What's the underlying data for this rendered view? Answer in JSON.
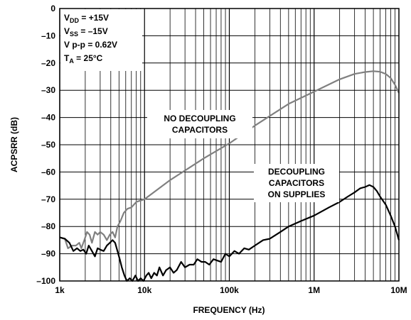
{
  "chart_data": {
    "type": "line",
    "title": "",
    "xlabel": "FREQUENCY (Hz)",
    "ylabel": "ACPSRR (dB)",
    "xscale": "log",
    "xlim": [
      1000,
      10000000
    ],
    "ylim": [
      -100,
      0
    ],
    "grid": true,
    "xticks": [
      {
        "value": 1000,
        "label": "1k"
      },
      {
        "value": 10000,
        "label": "10k"
      },
      {
        "value": 100000,
        "label": "100k"
      },
      {
        "value": 1000000,
        "label": "1M"
      },
      {
        "value": 10000000,
        "label": "10M"
      }
    ],
    "yticks": [
      {
        "value": 0,
        "label": "0"
      },
      {
        "value": -10,
        "label": "–10"
      },
      {
        "value": -20,
        "label": "–20"
      },
      {
        "value": -30,
        "label": "–30"
      },
      {
        "value": -40,
        "label": "–40"
      },
      {
        "value": -50,
        "label": "–50"
      },
      {
        "value": -60,
        "label": "–60"
      },
      {
        "value": -70,
        "label": "–70"
      },
      {
        "value": -80,
        "label": "–80"
      },
      {
        "value": -90,
        "label": "–90"
      },
      {
        "value": -100,
        "label": "–100"
      }
    ],
    "conditions": [
      {
        "main": "V",
        "sub": "DD",
        "rest": " = +15V"
      },
      {
        "main": "V",
        "sub": "SS",
        "rest": " = –15V"
      },
      {
        "main": "V p-p = 0.62V",
        "sub": "",
        "rest": ""
      },
      {
        "main": "T",
        "sub": "A",
        "rest": " = 25°C"
      }
    ],
    "series": [
      {
        "label_lines": [
          "NO DECOUPLING",
          "CAPACITORS"
        ],
        "color": "#808080",
        "points": [
          [
            1000,
            -84
          ],
          [
            1150,
            -84.5
          ],
          [
            1250,
            -88
          ],
          [
            1400,
            -87
          ],
          [
            1550,
            -87
          ],
          [
            1700,
            -86
          ],
          [
            1800,
            -88
          ],
          [
            1950,
            -85
          ],
          [
            2100,
            -82
          ],
          [
            2250,
            -83
          ],
          [
            2400,
            -86
          ],
          [
            2600,
            -82
          ],
          [
            2800,
            -83
          ],
          [
            3000,
            -82
          ],
          [
            3300,
            -83
          ],
          [
            3600,
            -85
          ],
          [
            3900,
            -83
          ],
          [
            4200,
            -82
          ],
          [
            4500,
            -84
          ],
          [
            4800,
            -80
          ],
          [
            5200,
            -78
          ],
          [
            5700,
            -75
          ],
          [
            6300,
            -73.5
          ],
          [
            7000,
            -73
          ],
          [
            8000,
            -71
          ],
          [
            10000,
            -70
          ],
          [
            20000,
            -63
          ],
          [
            50000,
            -55
          ],
          [
            100000,
            -49.5
          ],
          [
            200000,
            -43
          ],
          [
            500000,
            -35
          ],
          [
            1000000,
            -30.5
          ],
          [
            2000000,
            -26
          ],
          [
            3000000,
            -24
          ],
          [
            4000000,
            -23.3
          ],
          [
            5000000,
            -23
          ],
          [
            6000000,
            -23.2
          ],
          [
            7000000,
            -24
          ],
          [
            8000000,
            -25.5
          ],
          [
            9000000,
            -28
          ],
          [
            10000000,
            -31
          ]
        ]
      },
      {
        "label_lines": [
          "DECOUPLING",
          "CAPACITORS",
          "ON SUPPLIES"
        ],
        "color": "#000000",
        "points": [
          [
            1000,
            -84
          ],
          [
            1150,
            -84.5
          ],
          [
            1300,
            -86
          ],
          [
            1450,
            -89
          ],
          [
            1600,
            -88
          ],
          [
            1750,
            -89
          ],
          [
            1900,
            -88.5
          ],
          [
            2050,
            -90
          ],
          [
            2200,
            -87
          ],
          [
            2400,
            -89
          ],
          [
            2600,
            -91
          ],
          [
            2800,
            -88
          ],
          [
            3000,
            -88.5
          ],
          [
            3300,
            -89
          ],
          [
            3600,
            -87
          ],
          [
            3900,
            -86
          ],
          [
            4200,
            -85
          ],
          [
            4500,
            -86
          ],
          [
            4800,
            -89
          ],
          [
            5100,
            -92
          ],
          [
            5400,
            -95
          ],
          [
            5800,
            -98
          ],
          [
            6200,
            -100
          ],
          [
            6700,
            -99
          ],
          [
            7200,
            -100
          ],
          [
            7800,
            -98
          ],
          [
            8400,
            -100
          ],
          [
            9000,
            -99
          ],
          [
            9700,
            -100
          ],
          [
            10500,
            -98
          ],
          [
            11200,
            -97
          ],
          [
            12000,
            -99
          ],
          [
            13000,
            -97
          ],
          [
            14000,
            -98
          ],
          [
            15000,
            -95
          ],
          [
            16500,
            -98
          ],
          [
            18000,
            -96
          ],
          [
            20000,
            -95
          ],
          [
            22000,
            -97
          ],
          [
            24000,
            -96
          ],
          [
            27000,
            -93
          ],
          [
            30000,
            -95
          ],
          [
            34000,
            -94
          ],
          [
            38000,
            -94
          ],
          [
            42000,
            -92
          ],
          [
            47000,
            -93
          ],
          [
            52000,
            -93
          ],
          [
            58000,
            -94
          ],
          [
            65000,
            -92
          ],
          [
            72000,
            -92.5
          ],
          [
            80000,
            -93
          ],
          [
            90000,
            -90
          ],
          [
            100000,
            -91
          ],
          [
            115000,
            -89
          ],
          [
            130000,
            -90
          ],
          [
            150000,
            -88
          ],
          [
            170000,
            -88.5
          ],
          [
            200000,
            -87
          ],
          [
            250000,
            -85
          ],
          [
            300000,
            -84.5
          ],
          [
            400000,
            -82
          ],
          [
            500000,
            -80
          ],
          [
            700000,
            -78
          ],
          [
            1000000,
            -76
          ],
          [
            1500000,
            -73
          ],
          [
            2000000,
            -71
          ],
          [
            2500000,
            -69
          ],
          [
            3000000,
            -67.5
          ],
          [
            3500000,
            -66
          ],
          [
            4000000,
            -65.5
          ],
          [
            4500000,
            -64.8
          ],
          [
            5000000,
            -65.5
          ],
          [
            5500000,
            -67
          ],
          [
            6000000,
            -69
          ],
          [
            7000000,
            -72
          ],
          [
            8000000,
            -76
          ],
          [
            9000000,
            -80
          ],
          [
            10000000,
            -85
          ]
        ]
      }
    ]
  }
}
